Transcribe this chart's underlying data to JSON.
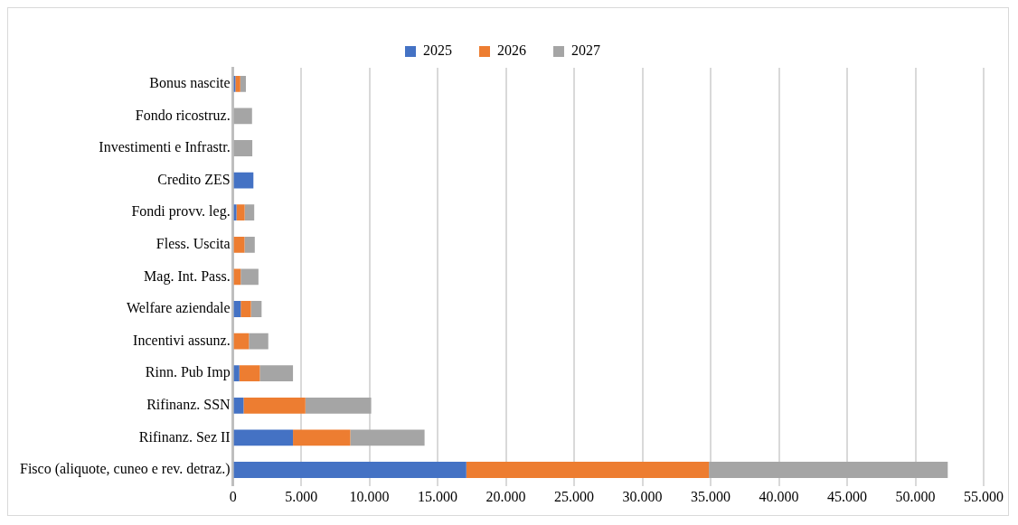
{
  "chart_data": {
    "type": "bar",
    "orientation": "horizontal",
    "stacked": true,
    "legend": "top",
    "grid": "x",
    "categories": [
      "Bonus nascite",
      "Fondo ricostruz.",
      "Investimenti e Infrastr.",
      "Credito ZES",
      "Fondi provv. leg.",
      "Fless. Uscita",
      "Mag. Int. Pass.",
      "Welfare aziendale",
      "Incentivi assunz.",
      "Rinn. Pub Imp",
      "Rifinanz. SSN",
      "Rifinanz. Sez II",
      "Fisco (aliquote, cuneo e rev. detraz.)"
    ],
    "series": [
      {
        "name": "2025",
        "color": "#4472c4",
        "values": [
          180,
          0,
          0,
          1500,
          260,
          0,
          0,
          570,
          0,
          470,
          780,
          4400,
          17100
        ]
      },
      {
        "name": "2026",
        "color": "#ed7d31",
        "values": [
          360,
          0,
          0,
          0,
          600,
          850,
          570,
          750,
          1170,
          1500,
          4530,
          4200,
          17770
        ]
      },
      {
        "name": "2027",
        "color": "#a5a5a5",
        "values": [
          410,
          1400,
          1420,
          0,
          700,
          750,
          1300,
          780,
          1420,
          2430,
          4820,
          5440,
          17500
        ]
      }
    ],
    "xlim": [
      0,
      55000
    ],
    "xticks": [
      {
        "value": 0,
        "label": "0"
      },
      {
        "value": 5000,
        "label": "5.000"
      },
      {
        "value": 10000,
        "label": "10.000"
      },
      {
        "value": 15000,
        "label": "15.000"
      },
      {
        "value": 20000,
        "label": "20.000"
      },
      {
        "value": 25000,
        "label": "25.000"
      },
      {
        "value": 30000,
        "label": "30.000"
      },
      {
        "value": 35000,
        "label": "35.000"
      },
      {
        "value": 40000,
        "label": "40.000"
      },
      {
        "value": 45000,
        "label": "45.000"
      },
      {
        "value": 50000,
        "label": "50.000"
      },
      {
        "value": 55000,
        "label": "55.000"
      }
    ]
  }
}
